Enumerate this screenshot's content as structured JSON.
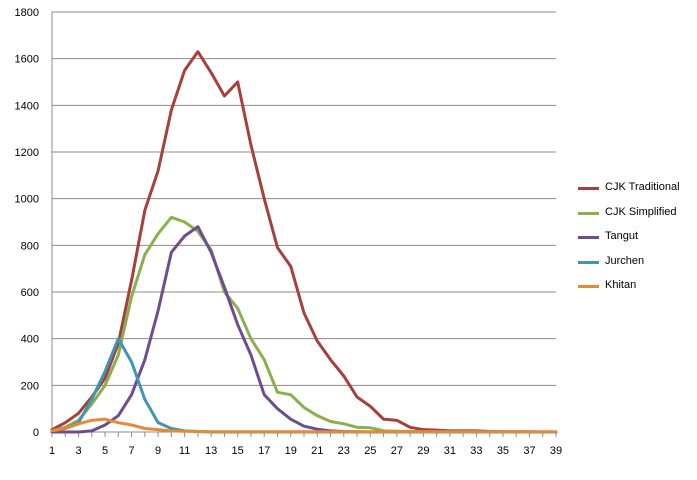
{
  "chart_data": {
    "type": "line",
    "title": "",
    "xlabel": "",
    "ylabel": "",
    "ylim": [
      0,
      1800
    ],
    "yticks": [
      0,
      200,
      400,
      600,
      800,
      1000,
      1200,
      1400,
      1600,
      1800
    ],
    "xticks": [
      1,
      3,
      5,
      7,
      9,
      11,
      13,
      15,
      17,
      19,
      21,
      23,
      25,
      27,
      29,
      31,
      33,
      35,
      37,
      39
    ],
    "grid": "horizontal",
    "legend_position": "right",
    "x": [
      1,
      2,
      3,
      4,
      5,
      6,
      7,
      8,
      9,
      10,
      11,
      12,
      13,
      14,
      15,
      16,
      17,
      18,
      19,
      20,
      21,
      22,
      23,
      24,
      25,
      26,
      27,
      28,
      29,
      30,
      31,
      32,
      33,
      34,
      35,
      36,
      37,
      38,
      39
    ],
    "series": [
      {
        "name": "CJK Traditional",
        "color": "#A5403C",
        "values": [
          10,
          40,
          80,
          150,
          230,
          380,
          650,
          950,
          1120,
          1380,
          1550,
          1630,
          1540,
          1440,
          1500,
          1230,
          1000,
          790,
          710,
          510,
          390,
          310,
          240,
          150,
          110,
          55,
          50,
          20,
          10,
          8,
          5,
          5,
          5,
          2,
          1,
          1,
          1,
          0,
          0
        ]
      },
      {
        "name": "CJK Simplified",
        "color": "#8AB04C",
        "values": [
          5,
          20,
          50,
          120,
          200,
          330,
          580,
          760,
          850,
          920,
          900,
          860,
          780,
          600,
          530,
          400,
          310,
          170,
          160,
          105,
          70,
          45,
          35,
          20,
          18,
          5,
          3,
          2,
          1,
          1,
          0,
          0,
          0,
          0,
          0,
          0,
          0,
          0,
          0
        ]
      },
      {
        "name": "Tangut",
        "color": "#6E4D8E",
        "values": [
          0,
          0,
          0,
          5,
          30,
          70,
          160,
          310,
          520,
          770,
          840,
          880,
          770,
          620,
          460,
          330,
          160,
          100,
          55,
          25,
          12,
          5,
          2,
          1,
          0,
          0,
          0,
          0,
          0,
          0,
          0,
          0,
          0,
          0,
          0,
          0,
          0,
          0,
          0
        ]
      },
      {
        "name": "Jurchen",
        "color": "#3E96B2",
        "values": [
          5,
          15,
          40,
          140,
          260,
          400,
          300,
          140,
          40,
          15,
          5,
          2,
          0,
          0,
          0,
          0,
          0,
          0,
          0,
          0,
          0,
          0,
          0,
          0,
          0,
          0,
          0,
          0,
          0,
          0,
          0,
          0,
          0,
          0,
          0,
          0,
          0,
          0,
          0
        ]
      },
      {
        "name": "Khitan",
        "color": "#E38A3A",
        "values": [
          5,
          15,
          35,
          50,
          55,
          40,
          30,
          15,
          10,
          5,
          3,
          2,
          1,
          1,
          1,
          1,
          1,
          1,
          1,
          1,
          1,
          1,
          1,
          1,
          1,
          1,
          1,
          1,
          1,
          1,
          1,
          1,
          1,
          1,
          1,
          1,
          1,
          1,
          1
        ]
      }
    ]
  }
}
